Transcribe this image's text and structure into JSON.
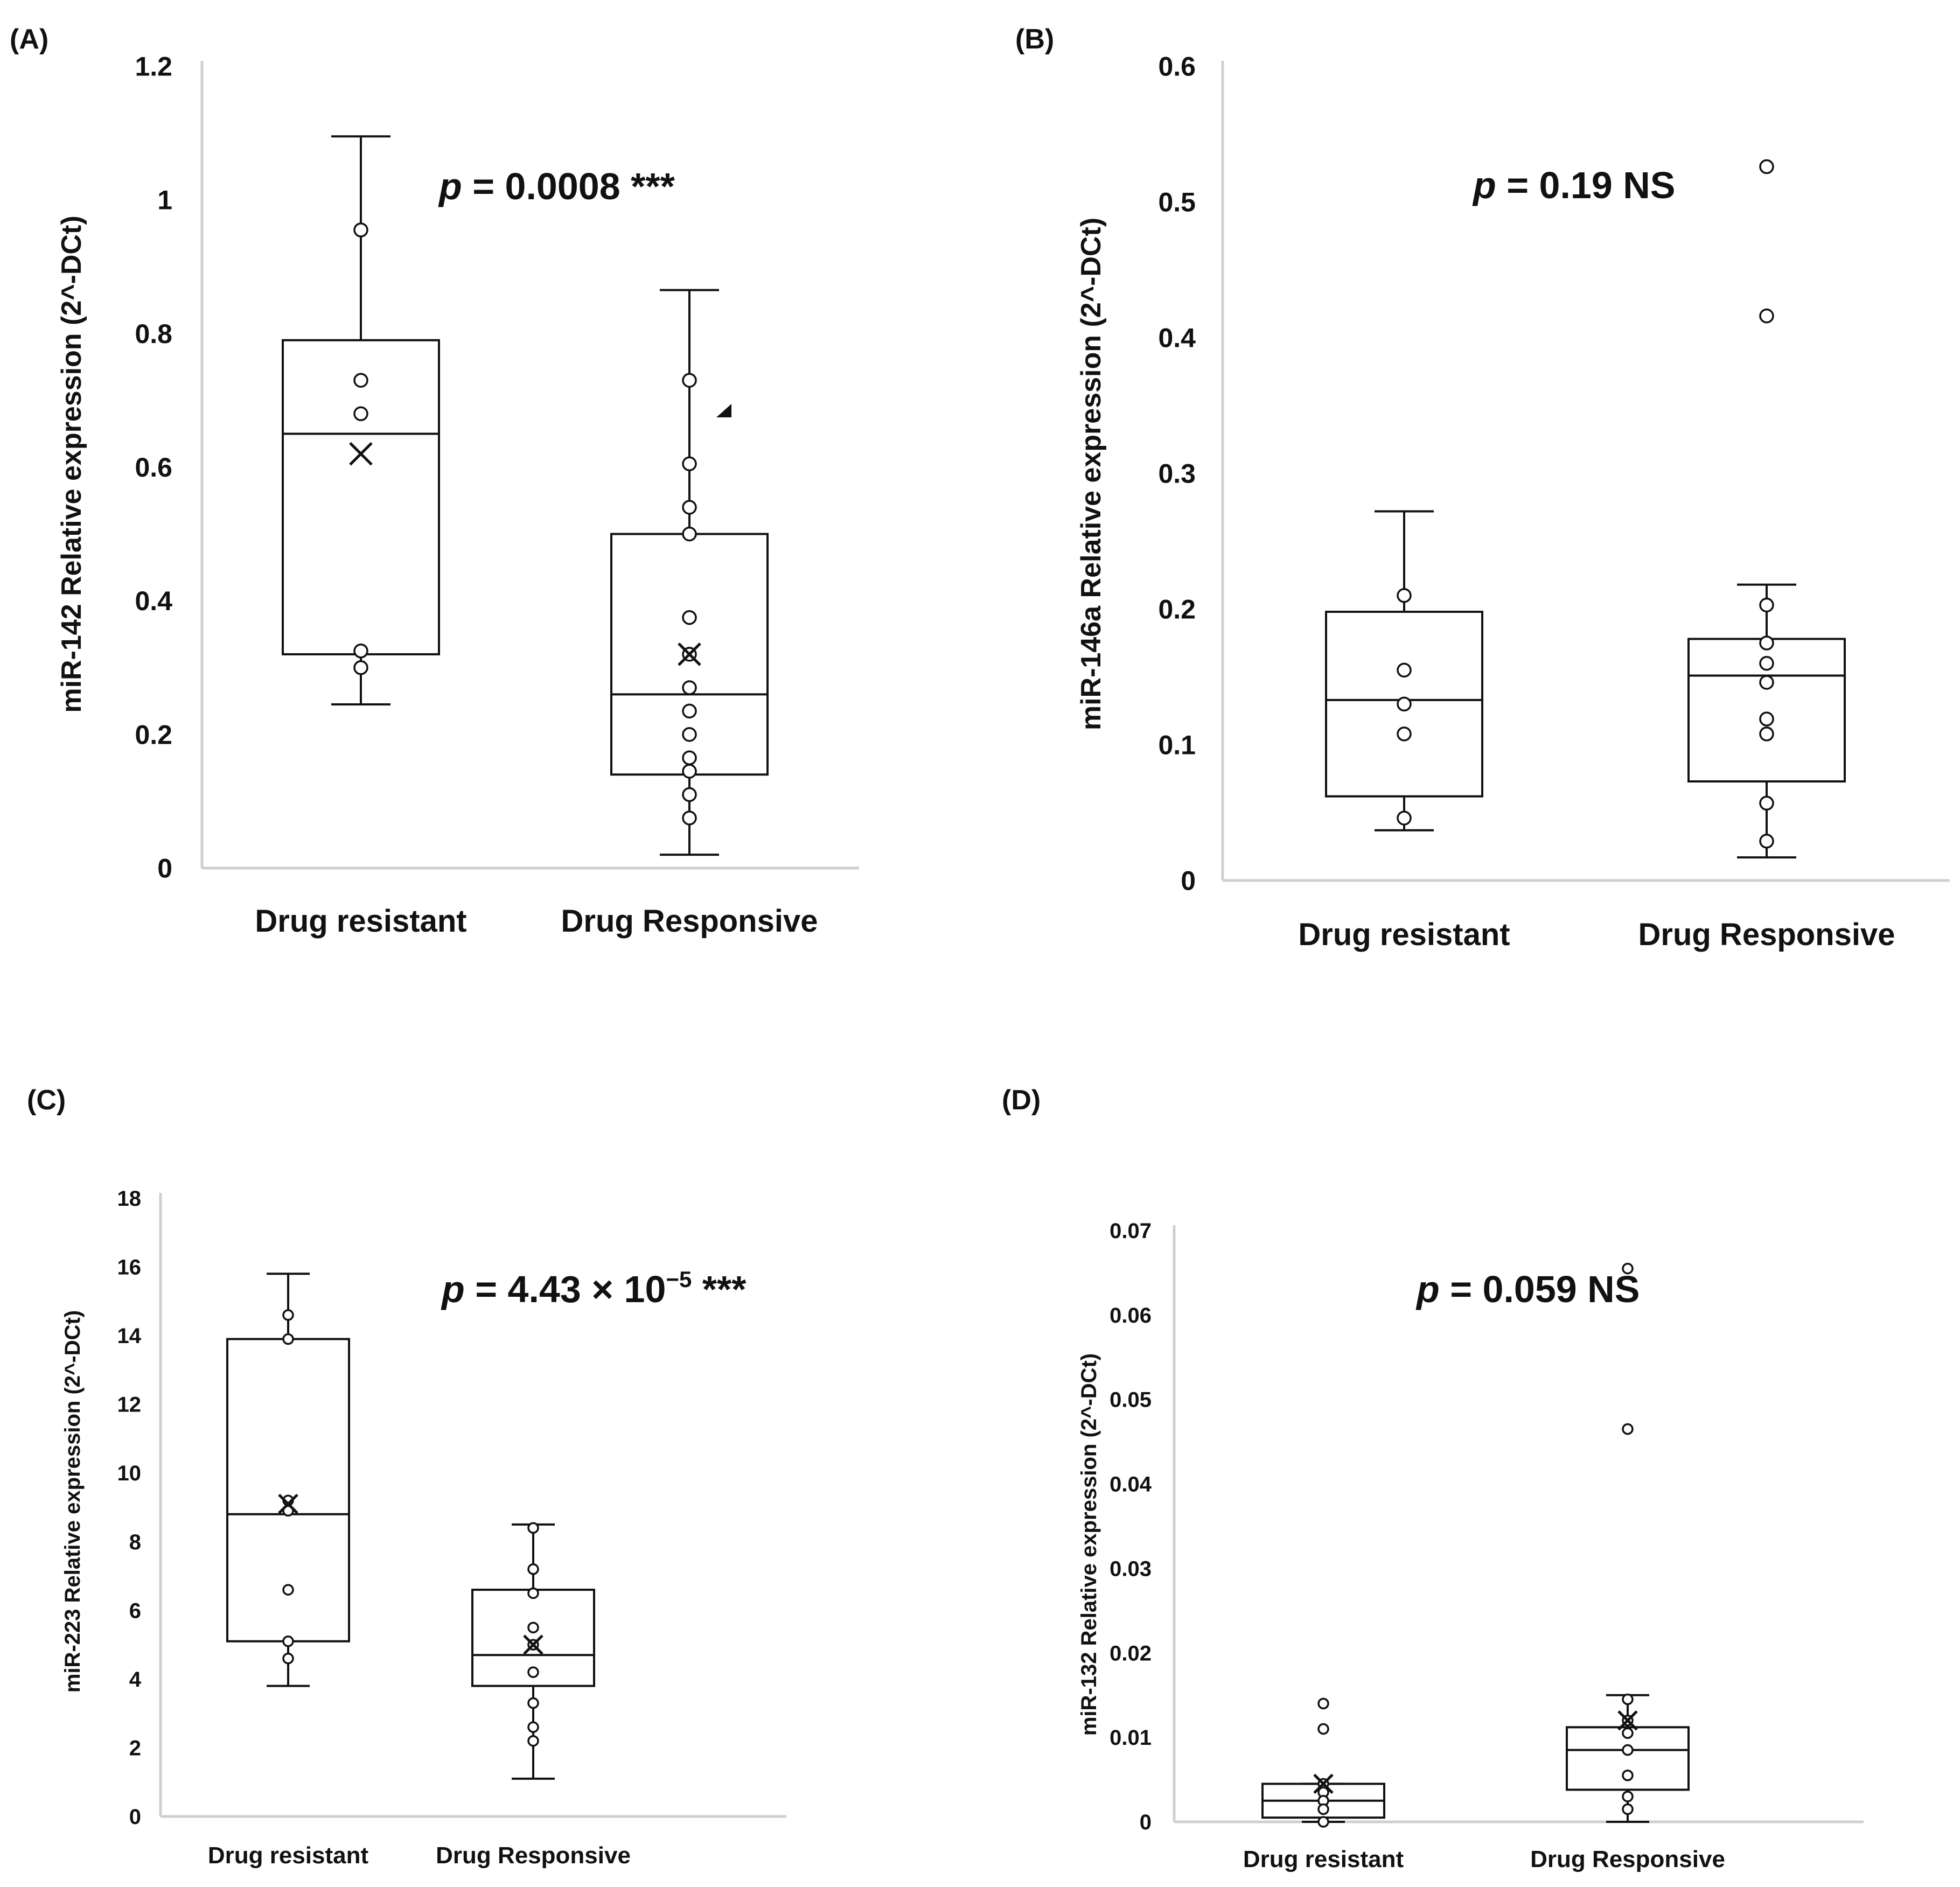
{
  "chart_data": [
    {
      "panel": "(A)",
      "type": "box",
      "ylabel": "miR-142 Relative expression (2^-DCt)",
      "ylim": [
        0,
        1.2
      ],
      "yticks": [
        "0",
        "0.2",
        "0.4",
        "0.6",
        "0.8",
        "1",
        "1.2"
      ],
      "categories": [
        "Drug resistant",
        "Drug Responsive"
      ],
      "annotation": {
        "p_symbol": "p",
        "text": " = 0.0008 ***"
      },
      "groups": [
        {
          "name": "Drug resistant",
          "min": 0.245,
          "q1": 0.32,
          "median": 0.65,
          "q3": 0.79,
          "max": 1.095,
          "mean": 0.62,
          "points": [
            0.955,
            0.73,
            0.68,
            0.325,
            0.3
          ]
        },
        {
          "name": "Drug Responsive",
          "min": 0.02,
          "q1": 0.14,
          "median": 0.26,
          "q3": 0.5,
          "max": 0.865,
          "mean": 0.32,
          "points": [
            0.73,
            0.605,
            0.54,
            0.5,
            0.375,
            0.32,
            0.27,
            0.235,
            0.2,
            0.165,
            0.145,
            0.11,
            0.075
          ]
        }
      ]
    },
    {
      "panel": "(B)",
      "type": "box",
      "ylabel": "miR-146a Relative expression (2^-DCt)",
      "ylim": [
        0,
        0.6
      ],
      "yticks": [
        "0",
        "0.1",
        "0.2",
        "0.3",
        "0.4",
        "0.5",
        "0.6"
      ],
      "categories": [
        "Drug resistant",
        "Drug Responsive"
      ],
      "annotation": {
        "p_symbol": "p",
        "text": " = 0.19 NS"
      },
      "groups": [
        {
          "name": "Drug resistant",
          "min": 0.037,
          "q1": 0.062,
          "median": 0.133,
          "q3": 0.198,
          "max": 0.272,
          "points": [
            0.21,
            0.155,
            0.13,
            0.108,
            0.046
          ]
        },
        {
          "name": "Drug Responsive",
          "min": 0.017,
          "q1": 0.073,
          "median": 0.151,
          "q3": 0.178,
          "max": 0.218,
          "points": [
            0.526,
            0.416,
            0.203,
            0.175,
            0.16,
            0.146,
            0.119,
            0.108,
            0.057,
            0.029
          ]
        }
      ]
    },
    {
      "panel": "(C)",
      "type": "box",
      "ylabel": "miR-223 Relative expression (2^-DCt)",
      "ylim": [
        0,
        18
      ],
      "yticks": [
        "0",
        "2",
        "4",
        "6",
        "8",
        "10",
        "12",
        "14",
        "16",
        "18"
      ],
      "categories": [
        "Drug resistant",
        "Drug Responsive"
      ],
      "annotation": {
        "p_symbol": "p",
        "text": " = 4.43 × 10",
        "exponent": "−5",
        "suffix": " ***"
      },
      "groups": [
        {
          "name": "Drug resistant",
          "min": 3.8,
          "q1": 5.1,
          "median": 8.8,
          "q3": 13.9,
          "max": 15.8,
          "mean": 9.1,
          "points": [
            14.6,
            13.9,
            9.2,
            8.9,
            6.6,
            5.1,
            4.6
          ]
        },
        {
          "name": "Drug Responsive",
          "min": 1.1,
          "q1": 3.8,
          "median": 4.7,
          "q3": 6.6,
          "max": 8.5,
          "mean": 5.0,
          "points": [
            8.4,
            7.2,
            6.5,
            5.5,
            5.0,
            4.2,
            3.3,
            2.6,
            2.2
          ]
        }
      ]
    },
    {
      "panel": "(D)",
      "type": "box",
      "ylabel": "miR-132 Relative expression (2^-DCt)",
      "ylim": [
        0,
        0.07
      ],
      "yticks": [
        "0",
        "0.01",
        "0.02",
        "0.03",
        "0.04",
        "0.05",
        "0.06",
        "0.07"
      ],
      "categories": [
        "Drug resistant",
        "Drug Responsive"
      ],
      "annotation": {
        "p_symbol": "p",
        "text": " = 0.059 NS"
      },
      "groups": [
        {
          "name": "Drug resistant",
          "min": 0.0,
          "q1": 0.0005,
          "median": 0.0025,
          "q3": 0.0045,
          "max": 0.0045,
          "mean": 0.0045,
          "points": [
            0.014,
            0.011,
            0.0045,
            0.0035,
            0.0025,
            0.0015,
            0.0
          ]
        },
        {
          "name": "Drug Responsive",
          "min": 0.0,
          "q1": 0.0038,
          "median": 0.0085,
          "q3": 0.0112,
          "max": 0.015,
          "mean": 0.012,
          "points": [
            0.0655,
            0.0465,
            0.0145,
            0.012,
            0.0105,
            0.0085,
            0.0055,
            0.003,
            0.0015
          ]
        }
      ]
    }
  ]
}
